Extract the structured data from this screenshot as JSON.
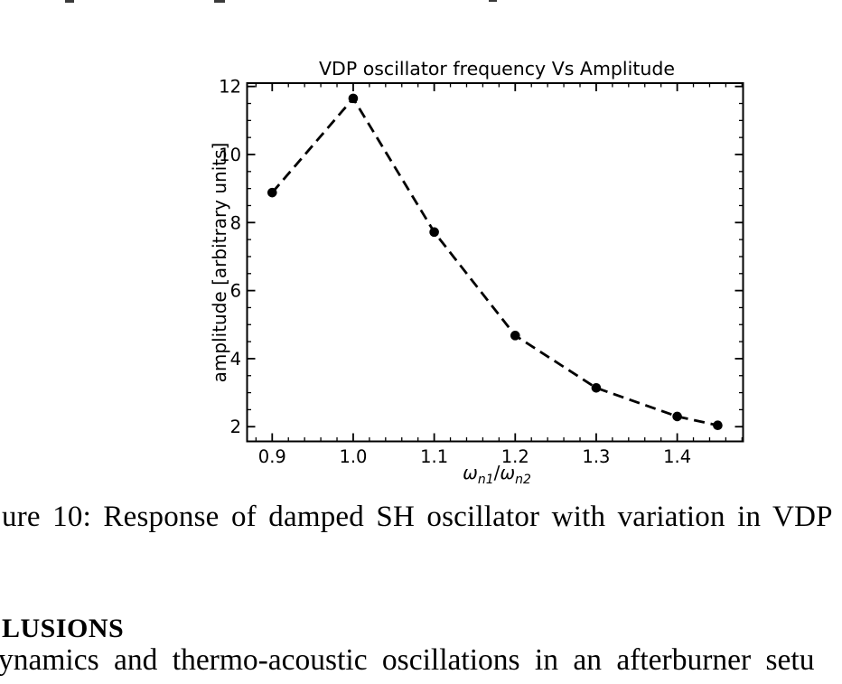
{
  "figure": {
    "caption_visible": "ure 10: Response of damped SH oscillator with variation in VDP"
  },
  "section": {
    "heading_visible": "LUSIONS",
    "body_visible": "ynamics and thermo-acoustic oscillations in an afterburner setu"
  },
  "chart_data": {
    "type": "line",
    "title": "VDP oscillator frequency Vs Amplitude",
    "xlabel": "ω_n1/ω_n2",
    "xlabel_parts": [
      {
        "text": "ω",
        "italic": true,
        "sub": false
      },
      {
        "text": "n1",
        "italic": true,
        "sub": true
      },
      {
        "text": "/",
        "italic": false,
        "sub": false
      },
      {
        "text": "ω",
        "italic": true,
        "sub": false
      },
      {
        "text": "n2",
        "italic": true,
        "sub": true
      }
    ],
    "ylabel": "amplitude [arbitrary units]",
    "x": [
      0.9,
      1.0,
      1.1,
      1.2,
      1.3,
      1.4,
      1.45
    ],
    "y": [
      8.88,
      11.65,
      7.72,
      4.68,
      3.14,
      2.3,
      2.04
    ],
    "xlim": [
      0.869,
      1.4813
    ],
    "ylim": [
      1.568,
      12.098
    ],
    "xticks": [
      0.9,
      1.0,
      1.1,
      1.2,
      1.3,
      1.4
    ],
    "xtick_labels": [
      "0.9",
      "1.0",
      "1.1",
      "1.2",
      "1.3",
      "1.4"
    ],
    "yticks": [
      2,
      4,
      6,
      8,
      10,
      12
    ],
    "ytick_labels": [
      "2",
      "4",
      "6",
      "8",
      "10",
      "12"
    ],
    "x_minor_step": 0.02,
    "y_minor_step": 0.5,
    "grid": false,
    "legend": null,
    "tick_direction": "in",
    "line_style": "dashed",
    "marker": "circle",
    "line_color": "#000000",
    "marker_color": "#000000",
    "frame_color": "#000000",
    "background": "#ffffff"
  }
}
